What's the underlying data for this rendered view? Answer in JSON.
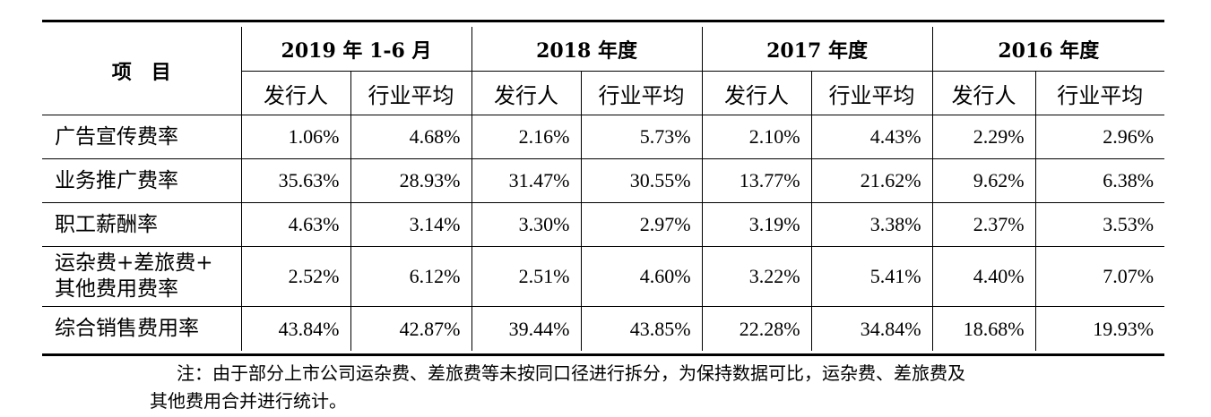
{
  "table": {
    "item_header": "项　目",
    "periods": [
      "2019 年 1-6 月",
      "2018 年度",
      "2017 年度",
      "2016 年度"
    ],
    "sub_headers": [
      "发行人",
      "行业平均"
    ],
    "rows": [
      {
        "label": "广告宣传费率",
        "values": [
          "1.06%",
          "4.68%",
          "2.16%",
          "5.73%",
          "2.10%",
          "4.43%",
          "2.29%",
          "2.96%"
        ]
      },
      {
        "label": "业务推广费率",
        "values": [
          "35.63%",
          "28.93%",
          "31.47%",
          "30.55%",
          "13.77%",
          "21.62%",
          "9.62%",
          "6.38%"
        ]
      },
      {
        "label": "职工薪酬率",
        "values": [
          "4.63%",
          "3.14%",
          "3.30%",
          "2.97%",
          "3.19%",
          "3.38%",
          "2.37%",
          "3.53%"
        ]
      },
      {
        "label_line1": "运杂费+差旅费+",
        "label_line2": "其他费用费率",
        "values": [
          "2.52%",
          "6.12%",
          "2.51%",
          "4.60%",
          "3.22%",
          "5.41%",
          "4.40%",
          "7.07%"
        ]
      },
      {
        "label": "综合销售费用率",
        "values": [
          "43.84%",
          "42.87%",
          "39.44%",
          "43.85%",
          "22.28%",
          "34.84%",
          "18.68%",
          "19.93%"
        ]
      }
    ]
  },
  "note": {
    "line1": "注：由于部分上市公司运杂费、差旅费等未按同口径进行拆分，为保持数据可比，运杂费、差旅费及",
    "line2": "其他费用合并进行统计。"
  }
}
